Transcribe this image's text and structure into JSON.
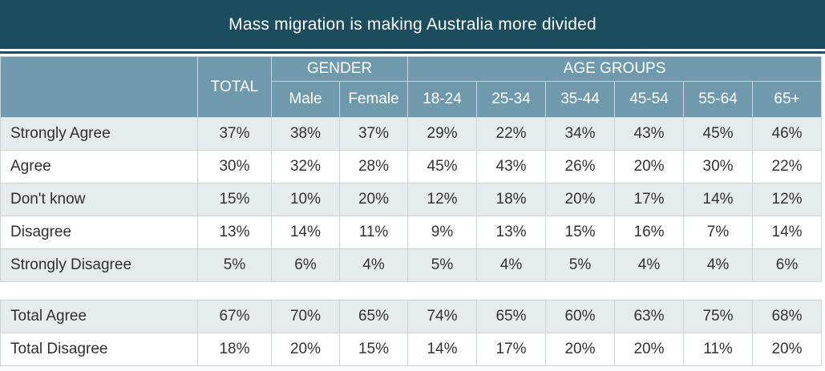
{
  "chart_data": {
    "type": "table",
    "title": "Mass migration is making Australia more divided",
    "header": {
      "total": "TOTAL",
      "gender_group": "GENDER",
      "age_group": "AGE GROUPS",
      "gender": [
        "Male",
        "Female"
      ],
      "ages": [
        "18-24",
        "25-34",
        "35-44",
        "45-54",
        "55-64",
        "65+"
      ]
    },
    "rows": [
      {
        "label": "Strongly Agree",
        "values": [
          "37%",
          "38%",
          "37%",
          "29%",
          "22%",
          "34%",
          "43%",
          "45%",
          "46%"
        ]
      },
      {
        "label": "Agree",
        "values": [
          "30%",
          "32%",
          "28%",
          "45%",
          "43%",
          "26%",
          "20%",
          "30%",
          "22%"
        ]
      },
      {
        "label": "Don't know",
        "values": [
          "15%",
          "10%",
          "20%",
          "12%",
          "18%",
          "20%",
          "17%",
          "14%",
          "12%"
        ]
      },
      {
        "label": "Disagree",
        "values": [
          "13%",
          "14%",
          "11%",
          "9%",
          "13%",
          "15%",
          "16%",
          "7%",
          "14%"
        ]
      },
      {
        "label": "Strongly Disagree",
        "values": [
          "5%",
          "6%",
          "4%",
          "5%",
          "4%",
          "5%",
          "4%",
          "4%",
          "6%"
        ]
      }
    ],
    "summary": [
      {
        "label": "Total Agree",
        "values": [
          "67%",
          "70%",
          "65%",
          "74%",
          "65%",
          "60%",
          "63%",
          "75%",
          "68%"
        ]
      },
      {
        "label": "Total Disagree",
        "values": [
          "18%",
          "20%",
          "15%",
          "14%",
          "17%",
          "20%",
          "20%",
          "11%",
          "20%"
        ]
      }
    ]
  },
  "colors": {
    "title_bg": "#1c4d5f",
    "header_bg": "#6f9aae",
    "alt_row_bg": "#e6ebee",
    "border": "#c9d3d8"
  }
}
